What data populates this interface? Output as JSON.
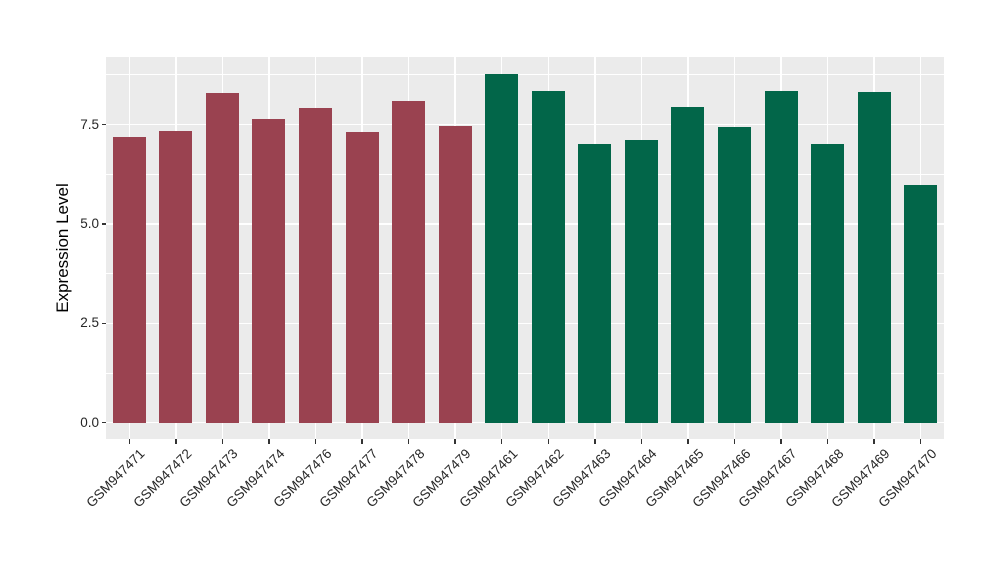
{
  "figure": {
    "background_color": "#FFFFFF",
    "panel_background_color": "#EBEBEB",
    "gridline_color": "#FFFFFF",
    "axis_text_color": "#262626",
    "axis_title_color": "#000000",
    "tick_mark_color": "#333333"
  },
  "chart_data": {
    "type": "bar",
    "title": "",
    "xlabel": "",
    "ylabel": "Expression Level",
    "legend_position": "none",
    "grid": "white major+minor horizontal and major vertical gridlines on grey panel",
    "ylim": [
      -0.41,
      9.2
    ],
    "yticks": [
      0.0,
      2.5,
      5.0,
      7.5
    ],
    "ytick_labels": [
      "0.0",
      "2.5",
      "5.0",
      "7.5"
    ],
    "yticks_minor": [
      1.25,
      3.75,
      6.25,
      8.75
    ],
    "categories": [
      "GSM947471",
      "GSM947472",
      "GSM947473",
      "GSM947474",
      "GSM947476",
      "GSM947477",
      "GSM947478",
      "GSM947479",
      "GSM947461",
      "GSM947462",
      "GSM947463",
      "GSM947464",
      "GSM947465",
      "GSM947466",
      "GSM947467",
      "GSM947468",
      "GSM947469",
      "GSM947470"
    ],
    "values": [
      7.18,
      7.33,
      8.29,
      7.63,
      7.91,
      7.31,
      8.1,
      7.47,
      8.78,
      8.35,
      7.02,
      7.1,
      7.95,
      7.43,
      8.35,
      7.02,
      8.32,
      5.97
    ],
    "bar_groups": [
      "maroon",
      "maroon",
      "maroon",
      "maroon",
      "maroon",
      "maroon",
      "maroon",
      "maroon",
      "green",
      "green",
      "green",
      "green",
      "green",
      "green",
      "green",
      "green",
      "green",
      "green"
    ],
    "group_colors": {
      "maroon": "#9A4250",
      "green": "#026649"
    }
  }
}
